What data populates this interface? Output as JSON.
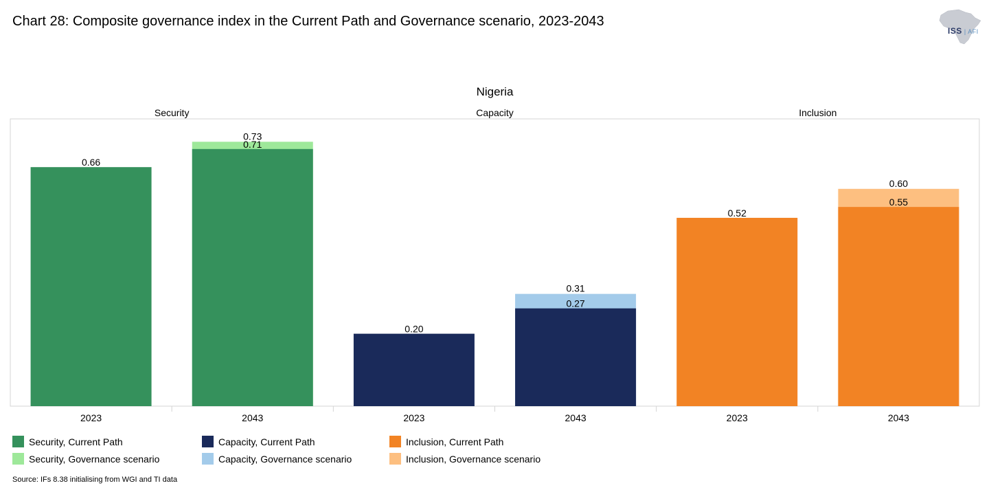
{
  "title": "Chart 28: Composite governance index in the Current Path and Governance scenario, 2023-2043",
  "logo": {
    "main": "ISS",
    "sub": "AFI"
  },
  "source": "Source: IFs 8.38 initialising from WGI and TI data",
  "colors": {
    "security_cp": "#35915c",
    "security_gov": "#9ee89a",
    "capacity_cp": "#1a2a5a",
    "capacity_gov": "#a3cbea",
    "inclusion_cp": "#f28324",
    "inclusion_gov": "#fdbf80"
  },
  "chart_data": {
    "type": "bar",
    "stacked": "overlay",
    "title": "Nigeria",
    "ylim": [
      0,
      0.8
    ],
    "grid": false,
    "panels": [
      {
        "name": "Security",
        "categories": [
          "2023",
          "2043"
        ],
        "series": [
          {
            "name": "Security, Current Path",
            "values": [
              0.66,
              0.71
            ],
            "color_key": "security_cp"
          },
          {
            "name": "Security, Governance scenario",
            "values": [
              0.66,
              0.73
            ],
            "color_key": "security_gov"
          }
        ],
        "labels_cp": [
          "0.66",
          "0.71"
        ],
        "labels_gov": [
          "",
          "0.73"
        ]
      },
      {
        "name": "Capacity",
        "categories": [
          "2023",
          "2043"
        ],
        "series": [
          {
            "name": "Capacity, Current Path",
            "values": [
              0.2,
              0.27
            ],
            "color_key": "capacity_cp"
          },
          {
            "name": "Capacity, Governance scenario",
            "values": [
              0.2,
              0.31
            ],
            "color_key": "capacity_gov"
          }
        ],
        "labels_cp": [
          "0.20",
          "0.27"
        ],
        "labels_gov": [
          "",
          "0.31"
        ]
      },
      {
        "name": "Inclusion",
        "categories": [
          "2023",
          "2043"
        ],
        "series": [
          {
            "name": "Inclusion, Current Path",
            "values": [
              0.52,
              0.55
            ],
            "color_key": "inclusion_cp"
          },
          {
            "name": "Inclusion, Governance scenario",
            "values": [
              0.52,
              0.6
            ],
            "color_key": "inclusion_gov"
          }
        ],
        "labels_cp": [
          "0.52",
          "0.55"
        ],
        "labels_gov": [
          "",
          "0.60"
        ]
      }
    ],
    "legend": [
      {
        "label": "Security, Current Path",
        "color_key": "security_cp"
      },
      {
        "label": "Security, Governance scenario",
        "color_key": "security_gov"
      },
      {
        "label": "Capacity, Current Path",
        "color_key": "capacity_cp"
      },
      {
        "label": "Capacity, Governance scenario",
        "color_key": "capacity_gov"
      },
      {
        "label": "Inclusion, Current Path",
        "color_key": "inclusion_cp"
      },
      {
        "label": "Inclusion, Governance scenario",
        "color_key": "inclusion_gov"
      }
    ]
  }
}
